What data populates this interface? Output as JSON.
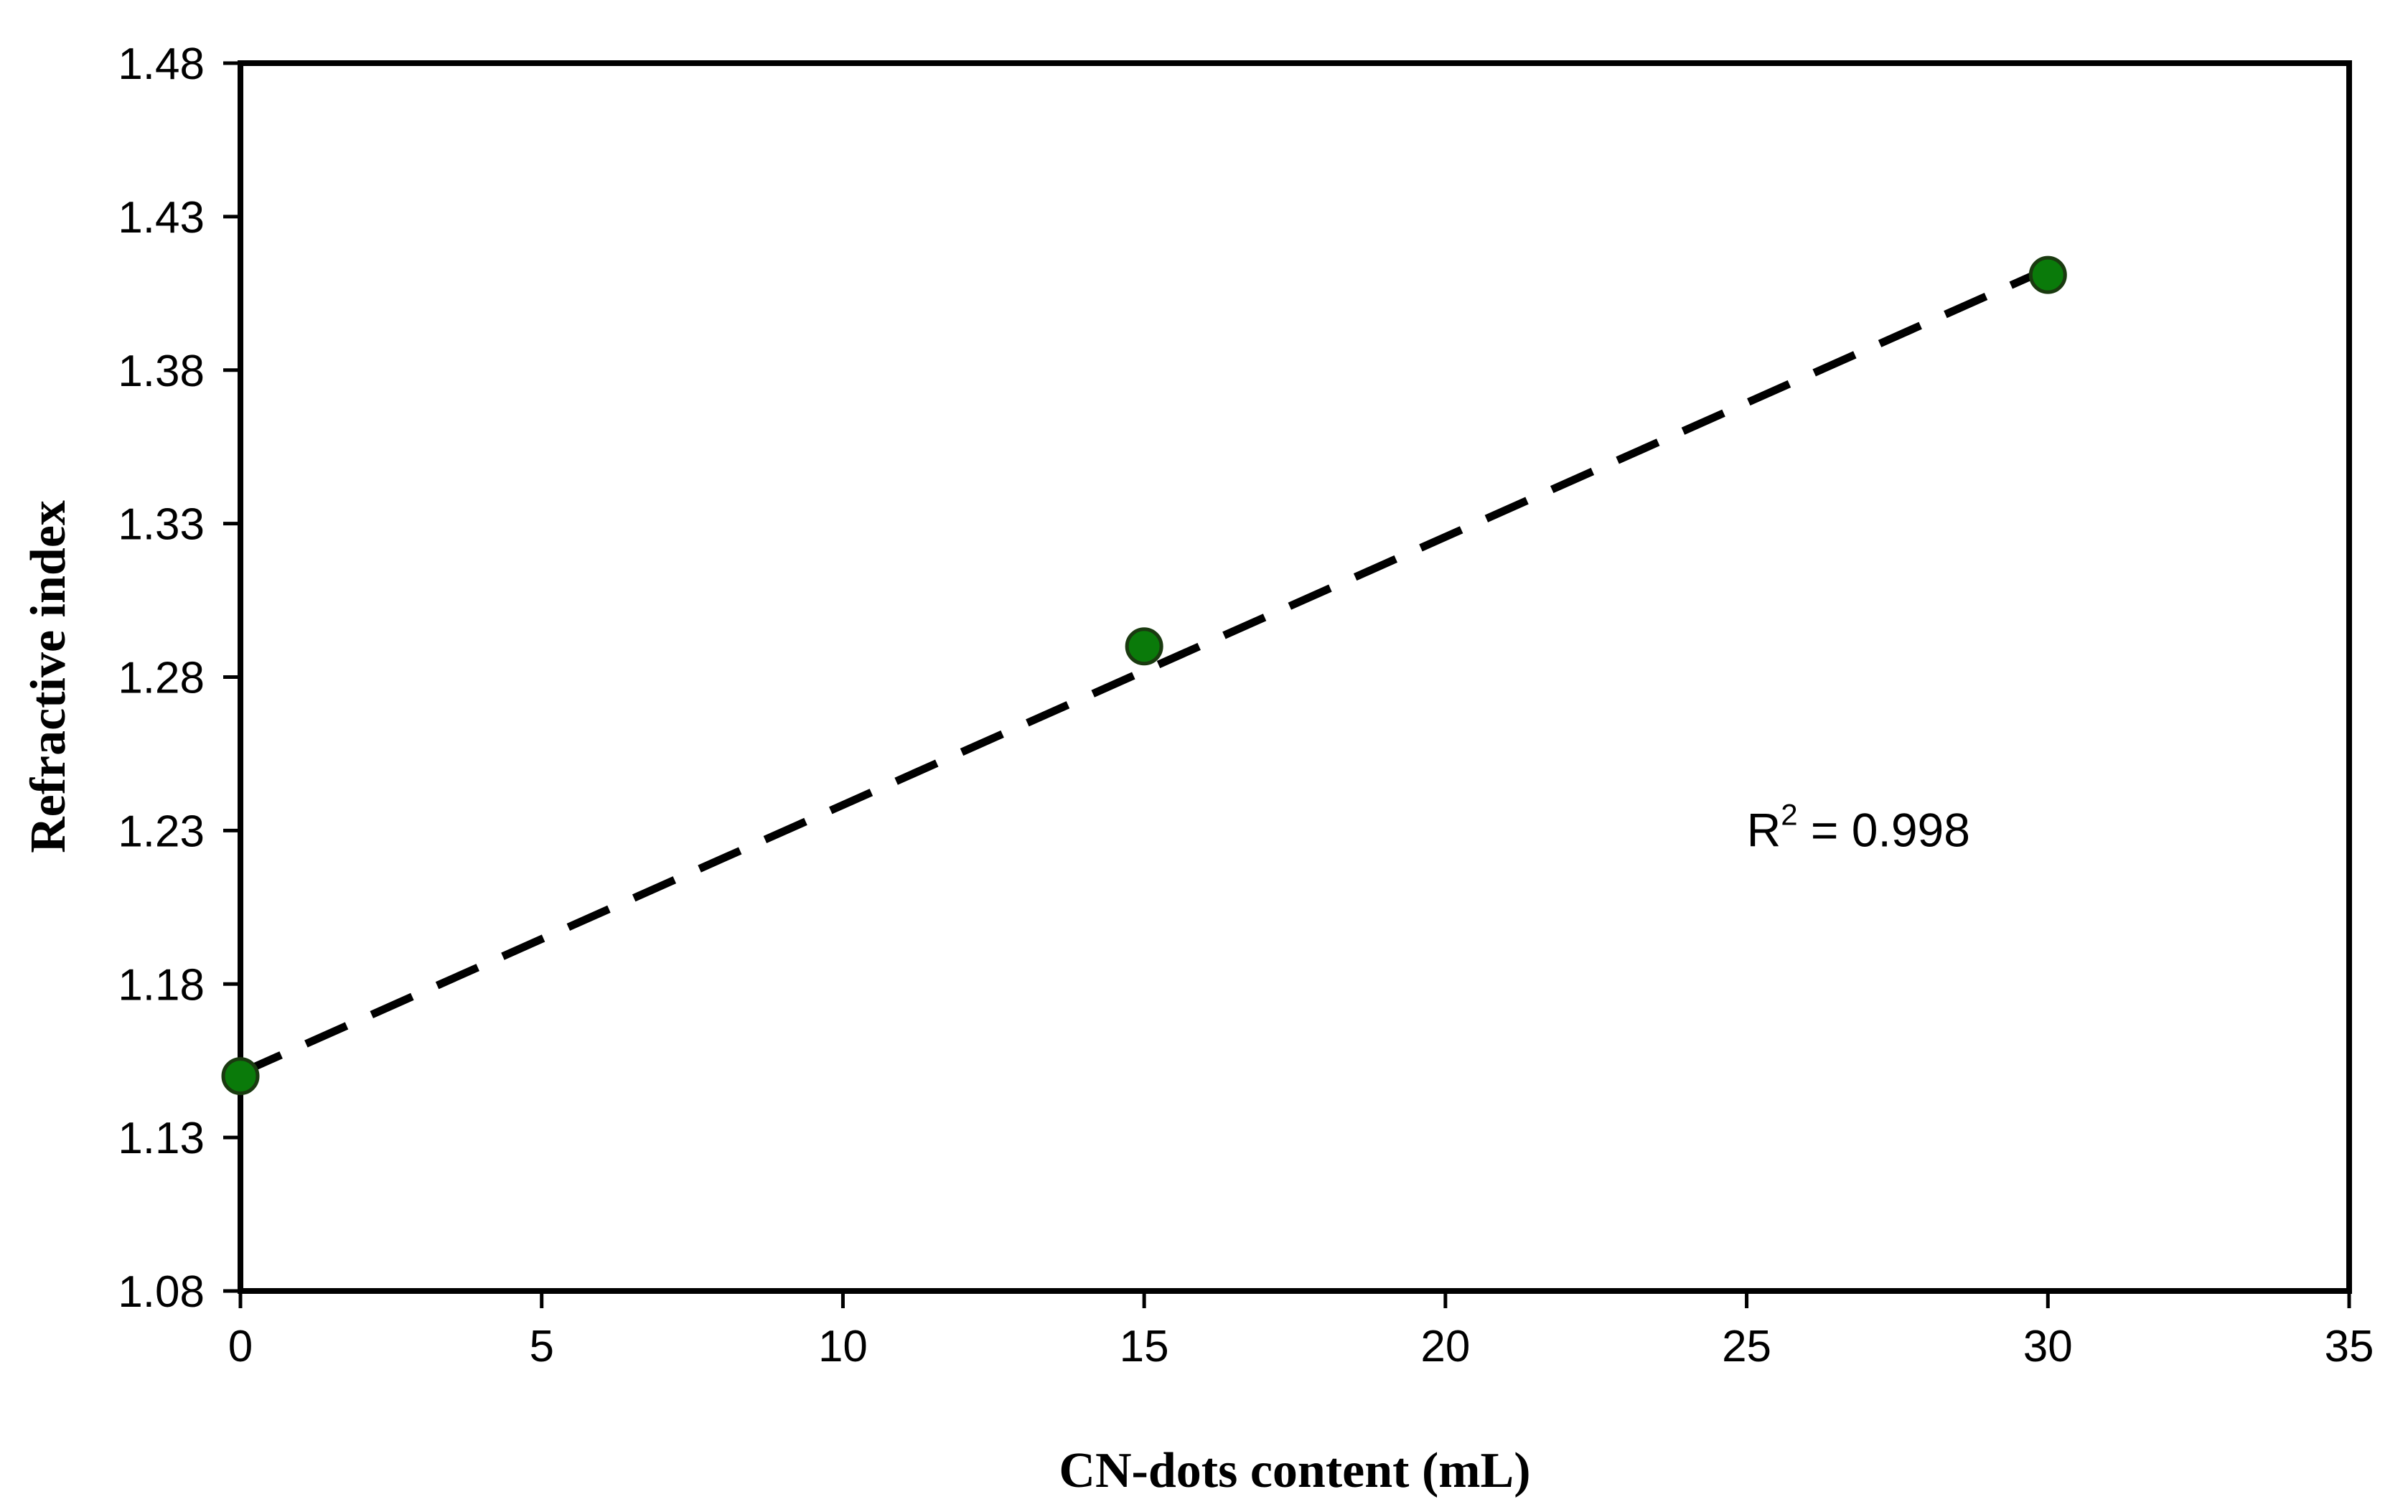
{
  "chart_data": {
    "type": "scatter",
    "title": "",
    "xlabel": "CN-dots content (mL)",
    "ylabel": "Refractive index",
    "xlim": [
      0,
      35
    ],
    "ylim": [
      1.08,
      1.48
    ],
    "x_ticks": [
      "0",
      "5",
      "10",
      "15",
      "20",
      "25",
      "30",
      "35"
    ],
    "y_ticks": [
      "1.08",
      "1.13",
      "1.18",
      "1.23",
      "1.28",
      "1.33",
      "1.38",
      "1.43",
      "1.48"
    ],
    "grid": false,
    "legend": "none",
    "series": [
      {
        "x": [
          0,
          15,
          30
        ],
        "y": [
          1.15,
          1.29,
          1.411
        ],
        "marker_color": "#0a7a0a",
        "marker_edge": "#1a3a10"
      }
    ],
    "trendline": {
      "style": "dashed",
      "color": "#000000",
      "x": [
        0,
        30
      ],
      "y": [
        1.151,
        1.413
      ]
    },
    "annotation": {
      "prefix": "R",
      "superscript": "2",
      "suffix": " = 0.998",
      "x": 25,
      "y": 1.23
    }
  }
}
